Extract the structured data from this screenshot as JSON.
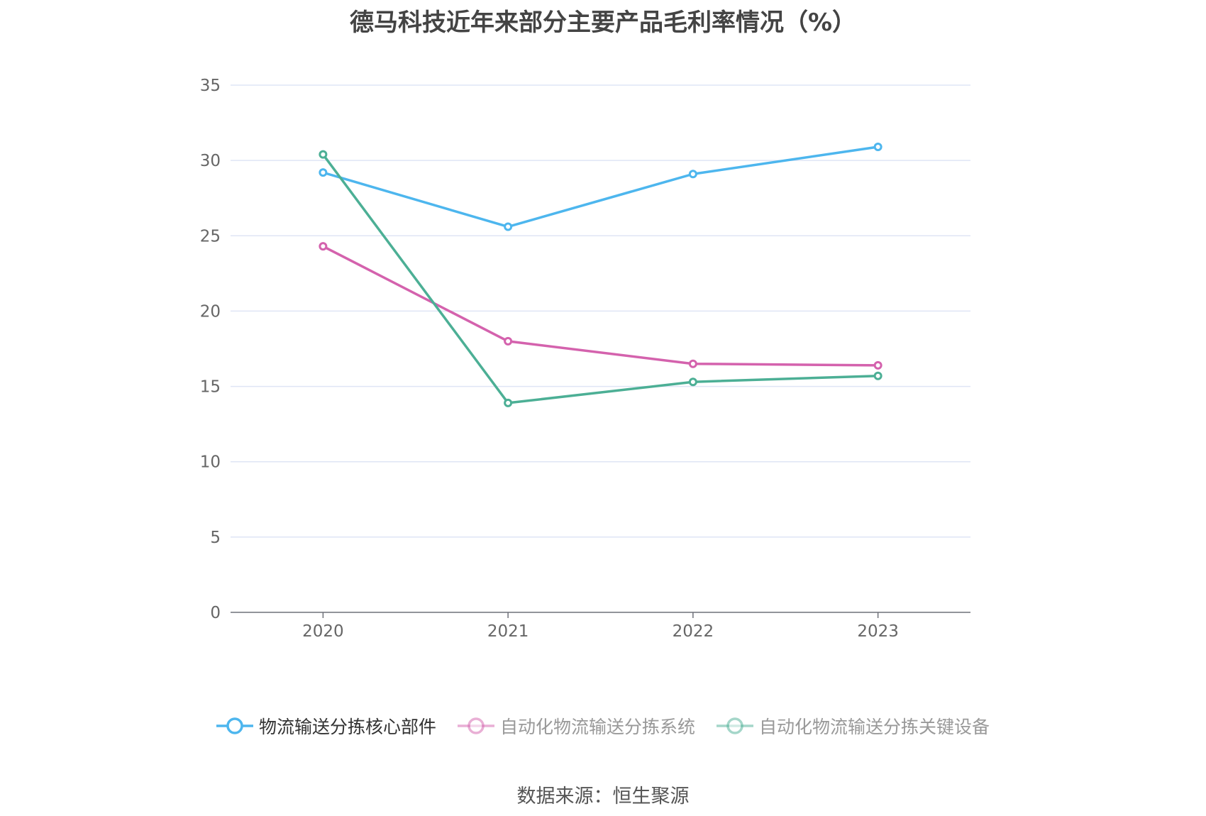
{
  "title": "德马科技近年来部分主要产品毛利率情况（%）",
  "source": "数据来源：恒生聚源",
  "chart_data": {
    "type": "line",
    "x": [
      "2020",
      "2021",
      "2022",
      "2023"
    ],
    "ylim": [
      0,
      35
    ],
    "yticks": [
      0,
      5,
      10,
      15,
      20,
      25,
      30,
      35
    ],
    "grid": true,
    "legend_position": "bottom",
    "series": [
      {
        "name": "物流输送分拣核心部件",
        "color": "#4db6ee",
        "values": [
          29.2,
          25.6,
          29.1,
          30.9
        ]
      },
      {
        "name": "自动化物流输送分拣系统",
        "color": "#d462ad",
        "values": [
          24.3,
          18.0,
          16.5,
          16.4
        ]
      },
      {
        "name": "自动化物流输送分拣关键设备",
        "color": "#4caf95",
        "values": [
          30.4,
          13.9,
          15.3,
          15.7
        ]
      }
    ]
  }
}
